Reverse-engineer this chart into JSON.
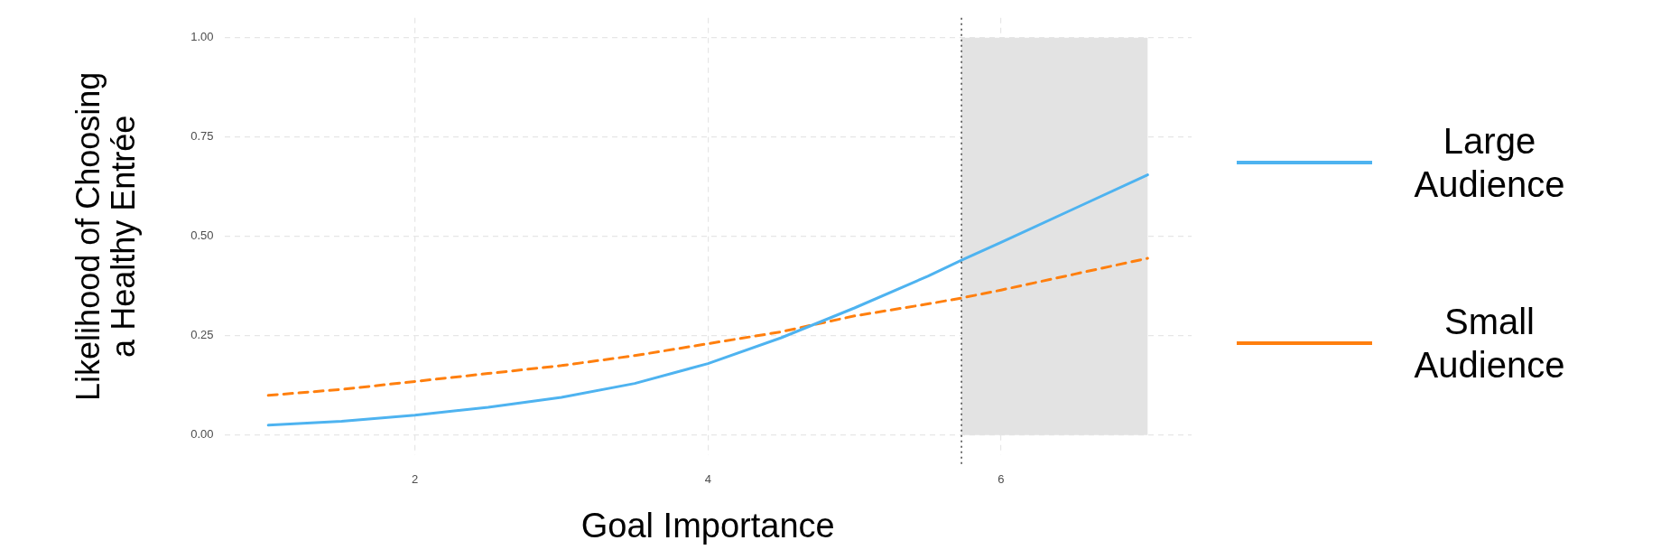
{
  "chart_data": {
    "type": "line",
    "xlabel": "Goal Importance",
    "ylabel": "Likelihood of Choosing\na Healthy Entrée",
    "xlim": [
      0.7,
      7.3
    ],
    "xticks": [
      2,
      4,
      6
    ],
    "ylim": [
      -0.05,
      1.05
    ],
    "yticks": [
      {
        "value": 0,
        "label": "0.00"
      },
      {
        "value": 0.25,
        "label": "0.25"
      },
      {
        "value": 0.5,
        "label": "0.50"
      },
      {
        "value": 0.75,
        "label": "0.75"
      },
      {
        "value": 1,
        "label": "1.00"
      }
    ],
    "grid": true,
    "legend": "right",
    "marker": "none",
    "series": [
      {
        "name": "Large Audience",
        "color": "#4eb3f0",
        "line_style": "solid",
        "x": [
          1,
          1.5,
          2,
          2.5,
          3,
          3.5,
          4,
          4.5,
          5,
          5.5,
          5.73,
          6,
          6.5,
          7
        ],
        "values": [
          0.025,
          0.035,
          0.05,
          0.07,
          0.095,
          0.13,
          0.18,
          0.245,
          0.32,
          0.4,
          0.44,
          0.485,
          0.57,
          0.655
        ]
      },
      {
        "name": "Small Audience",
        "color": "#ff7f0e",
        "line_style": "dashed",
        "x": [
          1,
          1.5,
          2,
          2.5,
          3,
          3.5,
          4,
          4.5,
          5,
          5.5,
          5.73,
          6,
          6.5,
          7
        ],
        "values": [
          0.1,
          0.115,
          0.135,
          0.155,
          0.175,
          0.2,
          0.23,
          0.26,
          0.3,
          0.33,
          0.345,
          0.365,
          0.405,
          0.445
        ]
      }
    ],
    "bands": [
      {
        "axis": "x",
        "from": 5.73,
        "to": 7,
        "color": "#e3e3e3"
      }
    ],
    "ref_lines": [
      {
        "axis": "x",
        "value": 5.73,
        "color": "#444444",
        "line_style": "dotted"
      }
    ]
  }
}
